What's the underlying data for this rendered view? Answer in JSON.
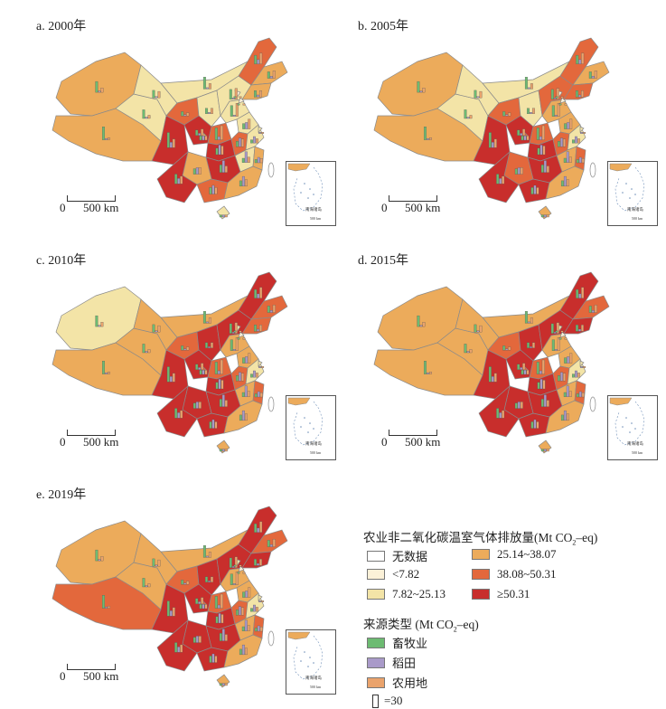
{
  "panels": [
    {
      "label": "a. 2000年",
      "colors": [
        "#ecab5b",
        "#ecab5b",
        "#f3e4a7",
        "#f3e4a7",
        "#f3e4a7",
        "#c82e2c",
        "#e3683c",
        "#f3e4a7",
        "#c82e2c",
        "#f3e4a7",
        "#e3683c",
        "#ecab5b",
        "#ecab5b",
        "#f3e4a7",
        "#e3683c",
        "#f3e4a7",
        "#c82e2c",
        "#e3683c",
        "#f3e4a7",
        "#f3e4a7",
        "#c82e2c",
        "#ecab5b",
        "#ecab5b",
        "#c82e2c",
        "#e3683c",
        "#ecab5b",
        "#f3e4a7",
        "#fbf1d8",
        "#fbf1d8",
        "#f3e4a7",
        "#ecab5b"
      ]
    },
    {
      "label": "b. 2005年",
      "colors": [
        "#ecab5b",
        "#ecab5b",
        "#f3e4a7",
        "#f3e4a7",
        "#f3e4a7",
        "#c82e2c",
        "#e3683c",
        "#f3e4a7",
        "#c82e2c",
        "#e3683c",
        "#e3683c",
        "#ecab5b",
        "#e3683c",
        "#ecab5b",
        "#e3683c",
        "#ecab5b",
        "#c82e2c",
        "#e3683c",
        "#f3e4a7",
        "#ecab5b",
        "#c82e2c",
        "#e3683c",
        "#e3683c",
        "#c82e2c",
        "#c82e2c",
        "#ecab5b",
        "#ecab5b",
        "#fbf1d8",
        "#fbf1d8",
        "#f3e4a7",
        "#e3683c"
      ]
    },
    {
      "label": "c. 2010年",
      "colors": [
        "#f3e4a7",
        "#ecab5b",
        "#ecab5b",
        "#ecab5b",
        "#ecab5b",
        "#c82e2c",
        "#e3683c",
        "#c82e2c",
        "#c82e2c",
        "#c82e2c",
        "#c82e2c",
        "#e3683c",
        "#e3683c",
        "#ecab5b",
        "#e3683c",
        "#ecab5b",
        "#c82e2c",
        "#e3683c",
        "#f3e4a7",
        "#ecab5b",
        "#c82e2c",
        "#e3683c",
        "#c82e2c",
        "#c82e2c",
        "#c82e2c",
        "#ecab5b",
        "#ecab5b",
        "#f3e4a7",
        "#fbf1d8",
        "#f3e4a7",
        "#e3683c"
      ]
    },
    {
      "label": "d. 2015年",
      "colors": [
        "#ecab5b",
        "#ecab5b",
        "#ecab5b",
        "#ecab5b",
        "#ecab5b",
        "#c82e2c",
        "#e3683c",
        "#c82e2c",
        "#c82e2c",
        "#c82e2c",
        "#c82e2c",
        "#e3683c",
        "#c82e2c",
        "#ecab5b",
        "#e3683c",
        "#ecab5b",
        "#c82e2c",
        "#e3683c",
        "#f3e4a7",
        "#ecab5b",
        "#c82e2c",
        "#e3683c",
        "#c82e2c",
        "#c82e2c",
        "#c82e2c",
        "#ecab5b",
        "#ecab5b",
        "#f3e4a7",
        "#fbf1d8",
        "#f3e4a7",
        "#e3683c"
      ]
    },
    {
      "label": "e. 2019年",
      "colors": [
        "#ecab5b",
        "#e3683c",
        "#ecab5b",
        "#ecab5b",
        "#ecab5b",
        "#c82e2c",
        "#e3683c",
        "#c82e2c",
        "#c82e2c",
        "#c82e2c",
        "#c82e2c",
        "#e3683c",
        "#c82e2c",
        "#ecab5b",
        "#e3683c",
        "#ecab5b",
        "#c82e2c",
        "#e3683c",
        "#f3e4a7",
        "#ecab5b",
        "#c82e2c",
        "#e3683c",
        "#c82e2c",
        "#c82e2c",
        "#c82e2c",
        "#ecab5b",
        "#ecab5b",
        "#f3e4a7",
        "#fbf1d8",
        "#f3e4a7",
        "#e3683c"
      ]
    }
  ],
  "scale": {
    "zero": "0",
    "distance": "500 km"
  },
  "inset": {
    "label": "南海诸岛",
    "scale": "500 km"
  },
  "legend": {
    "title_main": "农业非二氧化碳温室气体排放量(Mt CO",
    "title_sub": "2",
    "title_tail": "–eq)",
    "emission_classes": [
      {
        "label": "无数据",
        "color": "#ffffff"
      },
      {
        "label": "<7.82",
        "color": "#fbf1d8"
      },
      {
        "label": "7.82~25.13",
        "color": "#f3e4a7"
      },
      {
        "label": "25.14~38.07",
        "color": "#ecab5b"
      },
      {
        "label": "38.08~50.31",
        "color": "#e3683c"
      },
      {
        "label": "≥50.31",
        "color": "#c82e2c"
      }
    ],
    "source_title_main": "来源类型 (Mt CO",
    "source_title_sub": "2",
    "source_title_tail": "–eq)",
    "source_types": [
      {
        "label": "畜牧业",
        "color": "#6dbb72"
      },
      {
        "label": "稻田",
        "color": "#a99ac9"
      },
      {
        "label": "农用地",
        "color": "#eaa36c"
      }
    ],
    "bar_scale_label": "=30"
  }
}
